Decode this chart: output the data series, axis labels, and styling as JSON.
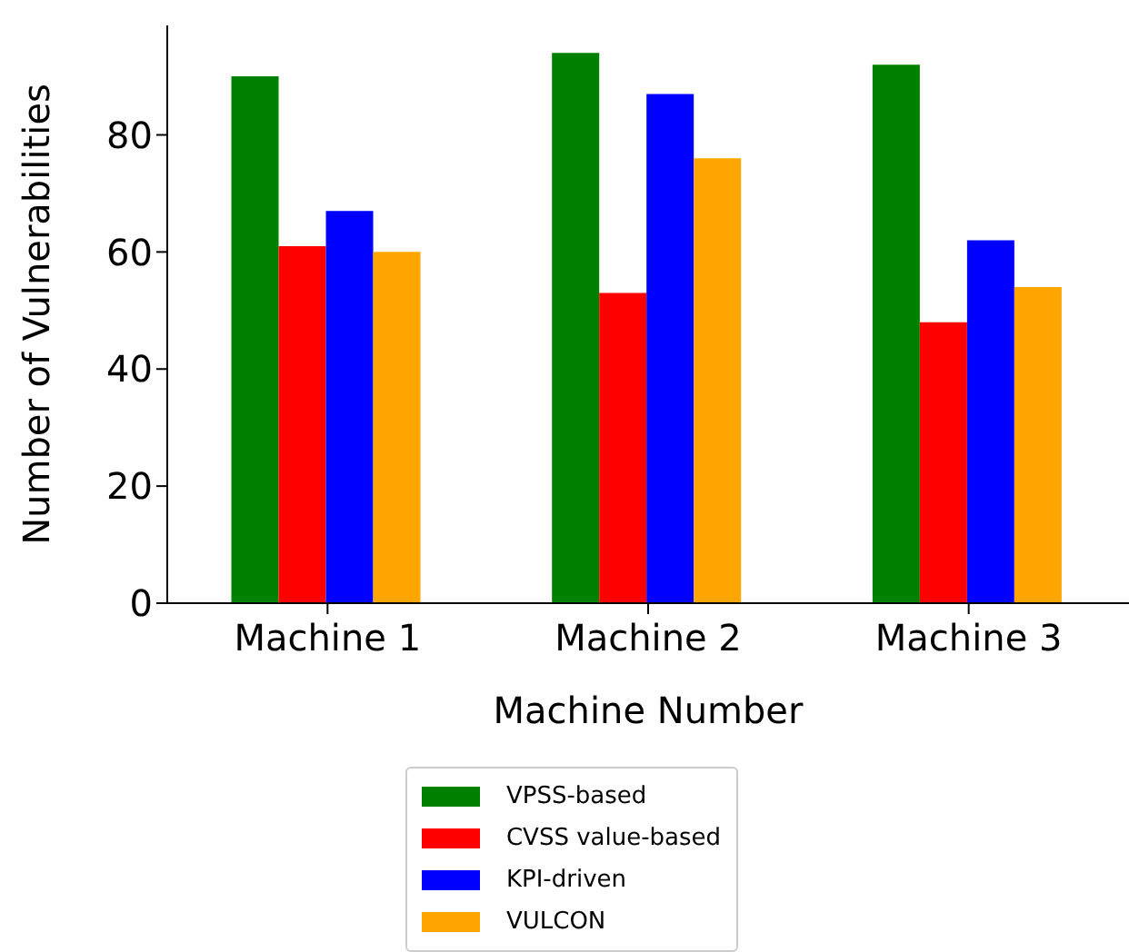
{
  "chart_data": {
    "type": "bar",
    "xlabel": "Machine Number",
    "ylabel": "Number of Vulnerabilities",
    "categories": [
      "Machine 1",
      "Machine 2",
      "Machine 3"
    ],
    "series": [
      {
        "name": "VPSS-based",
        "color": "#008000",
        "values": [
          90,
          94,
          92
        ]
      },
      {
        "name": "CVSS value-based",
        "color": "#ff0000",
        "values": [
          61,
          53,
          48
        ]
      },
      {
        "name": "KPI-driven",
        "color": "#0000ff",
        "values": [
          67,
          87,
          62
        ]
      },
      {
        "name": "VULCON",
        "color": "#ffa500",
        "values": [
          60,
          76,
          54
        ]
      }
    ],
    "ylim": [
      0,
      98.7
    ],
    "yticks": [
      0,
      20,
      40,
      60,
      80
    ],
    "grid": false,
    "legend": "bottom"
  }
}
